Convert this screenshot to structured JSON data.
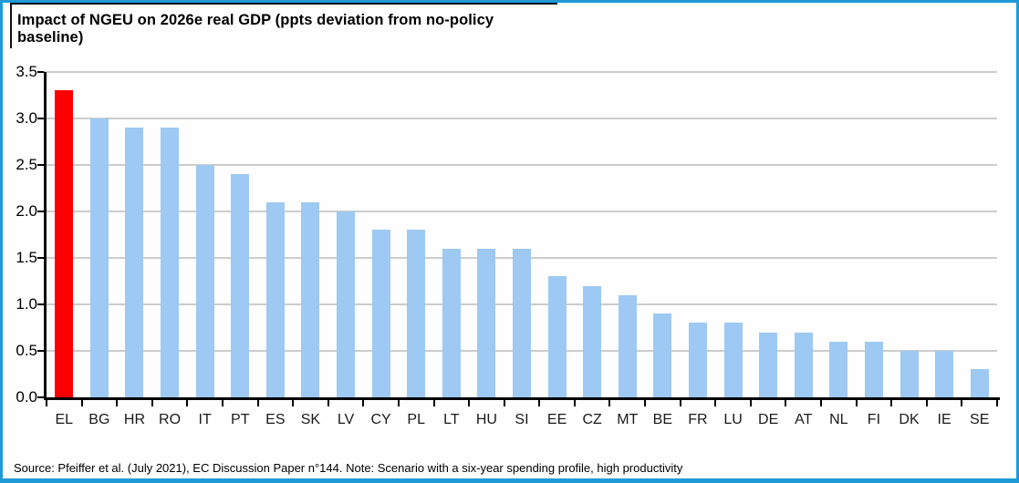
{
  "title": "Impact of NGEU on 2026e real GDP (ppts deviation from no-policy baseline)",
  "source_note": "Source: Pfeiffer et al. (July 2021), EC Discussion Paper n°144. Note: Scenario with a six-year spending profile, high productivity",
  "colors": {
    "frame_border": "#1f9ad7",
    "highlight_bar": "#fd0000",
    "bar": "#9dc9f2",
    "gridline": "#cccccc",
    "axis": "#000000"
  },
  "chart_data": {
    "type": "bar",
    "title": "Impact of NGEU on 2026e real GDP (ppts deviation from no-policy baseline)",
    "categories": [
      "EL",
      "BG",
      "HR",
      "RO",
      "IT",
      "PT",
      "ES",
      "SK",
      "LV",
      "CY",
      "PL",
      "LT",
      "HU",
      "SI",
      "EE",
      "CZ",
      "MT",
      "BE",
      "FR",
      "LU",
      "DE",
      "AT",
      "NL",
      "FI",
      "DK",
      "IE",
      "SE"
    ],
    "values": [
      3.3,
      3.0,
      2.9,
      2.9,
      2.5,
      2.4,
      2.1,
      2.1,
      2.0,
      1.8,
      1.8,
      1.6,
      1.6,
      1.6,
      1.3,
      1.2,
      1.1,
      0.9,
      0.8,
      0.8,
      0.7,
      0.7,
      0.6,
      0.6,
      0.5,
      0.5,
      0.3
    ],
    "highlighted_category": "EL",
    "xlabel": "",
    "ylabel": "",
    "ylim": [
      0,
      3.5
    ],
    "ytick_labels": [
      "0.0",
      "0.5",
      "1.0",
      "1.5",
      "2.0",
      "2.5",
      "3.0",
      "3.5"
    ],
    "grid": true,
    "legend": false
  }
}
